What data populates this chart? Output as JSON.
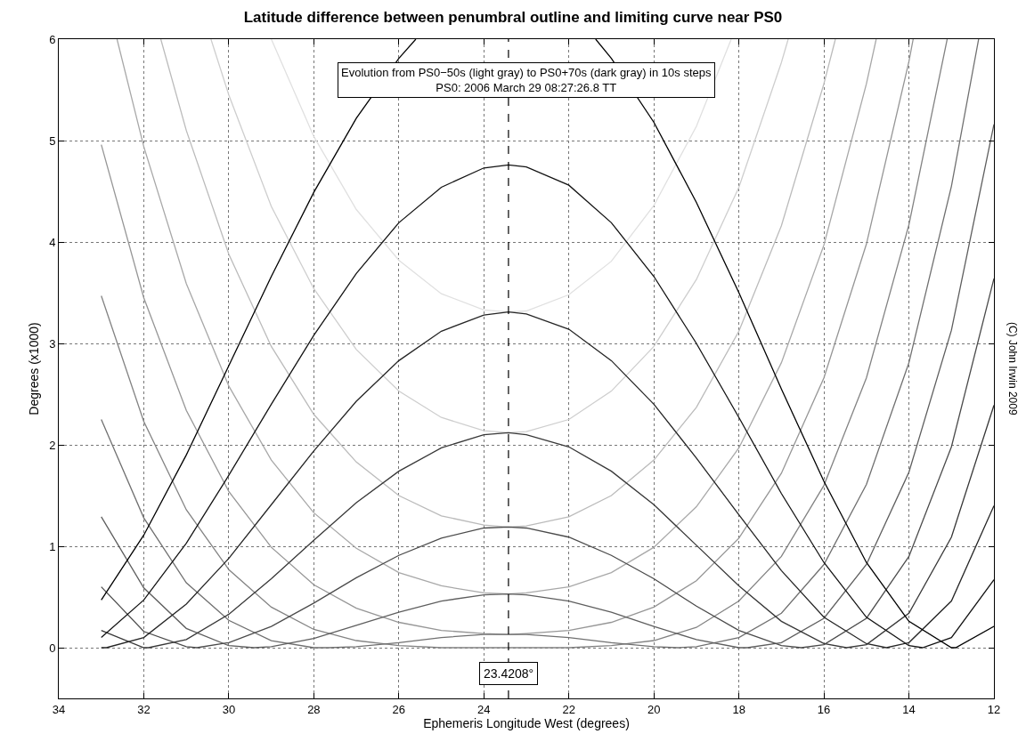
{
  "chart_data": {
    "type": "line",
    "title": "Latitude difference between penumbral outline and limiting curve near PS0",
    "xlabel": "Ephemeris Longitude West (degrees)",
    "ylabel": "Degrees (x1000)",
    "xlim": [
      34,
      12
    ],
    "xticks": [
      34,
      32,
      30,
      28,
      26,
      24,
      22,
      20,
      18,
      16,
      14,
      12
    ],
    "ylim": [
      -0.5,
      6
    ],
    "yticks": [
      0,
      1,
      2,
      3,
      4,
      5,
      6
    ],
    "grid": true,
    "series": [
      {
        "color": "#e0e0e0",
        "x": [
          29.0,
          28,
          27,
          26,
          25,
          24,
          23.42,
          23,
          22,
          21,
          20,
          19,
          18.18
        ],
        "values": [
          6.0,
          5.04,
          4.32,
          3.82,
          3.49,
          3.33,
          3.31,
          3.32,
          3.48,
          3.81,
          4.36,
          5.14,
          6.0
        ]
      },
      {
        "color": "#cecece",
        "x": [
          30.42,
          30,
          29,
          28,
          27,
          26,
          25,
          24,
          23.42,
          23,
          22,
          21,
          20,
          19,
          18,
          17,
          16.84
        ],
        "values": [
          6.0,
          5.45,
          4.35,
          3.54,
          2.94,
          2.53,
          2.27,
          2.14,
          2.12,
          2.13,
          2.25,
          2.53,
          2.97,
          3.63,
          4.54,
          5.77,
          6.0
        ]
      },
      {
        "color": "#bbbbbb",
        "x": [
          31.6,
          31,
          30,
          29,
          28,
          27,
          26,
          25,
          24,
          23.42,
          23,
          22,
          21,
          20,
          19,
          18,
          17,
          16,
          15.73
        ],
        "values": [
          6.0,
          5.1,
          3.88,
          2.97,
          2.3,
          1.83,
          1.5,
          1.3,
          1.21,
          1.19,
          1.2,
          1.29,
          1.5,
          1.85,
          2.37,
          3.12,
          4.16,
          5.56,
          6.0
        ]
      },
      {
        "color": "#a8a8a8",
        "x": [
          32.63,
          32,
          31,
          30,
          29,
          28,
          27,
          26,
          25,
          24,
          23.42,
          23,
          22,
          21,
          20,
          19,
          18,
          17,
          16,
          15,
          14.77
        ],
        "values": [
          6.0,
          4.94,
          3.59,
          2.58,
          1.85,
          1.33,
          0.98,
          0.74,
          0.61,
          0.54,
          0.53,
          0.54,
          0.6,
          0.74,
          0.99,
          1.39,
          1.97,
          2.81,
          3.97,
          5.56,
          6.0
        ]
      },
      {
        "color": "#969696",
        "x": [
          33,
          32,
          31,
          30,
          29,
          28,
          27,
          26,
          25,
          24,
          23.42,
          23,
          22,
          21,
          20,
          19,
          18,
          17,
          16,
          15,
          14,
          13.9
        ],
        "values": [
          4.96,
          3.45,
          2.34,
          1.54,
          0.99,
          0.62,
          0.39,
          0.25,
          0.17,
          0.14,
          0.13,
          0.14,
          0.17,
          0.25,
          0.4,
          0.66,
          1.08,
          1.72,
          2.66,
          3.98,
          5.78,
          6.0
        ]
      },
      {
        "color": "#838383",
        "x": [
          33,
          32,
          31,
          30,
          29,
          28,
          27,
          26,
          25,
          24,
          23.42,
          23,
          22,
          21,
          20,
          19,
          18,
          17,
          16,
          15,
          14,
          13.1
        ],
        "values": [
          3.47,
          2.23,
          1.36,
          0.77,
          0.4,
          0.18,
          0.07,
          0.02,
          0.0,
          0.0,
          0.0,
          0.0,
          0.0,
          0.02,
          0.07,
          0.2,
          0.46,
          0.9,
          1.6,
          2.66,
          4.17,
          6.0
        ]
      },
      {
        "color": "#707070",
        "x": [
          33,
          32,
          31,
          30,
          29,
          28,
          27.65,
          27,
          26,
          25,
          24,
          23.42,
          23,
          22,
          21,
          20,
          19.44,
          19,
          18,
          17,
          16,
          15,
          14,
          13,
          12.36
        ],
        "values": [
          2.25,
          1.28,
          0.64,
          0.27,
          0.07,
          0.0,
          0.0,
          0.01,
          0.05,
          0.1,
          0.13,
          0.13,
          0.13,
          0.1,
          0.05,
          0.01,
          0.0,
          0.01,
          0.1,
          0.34,
          0.82,
          1.61,
          2.81,
          4.55,
          6.0
        ]
      },
      {
        "color": "#5e5e5e",
        "x": [
          33,
          32,
          31,
          30,
          29.41,
          29,
          28,
          27,
          26,
          25,
          24,
          23.42,
          23,
          22,
          21,
          20,
          19,
          18,
          17.8,
          17,
          16,
          15,
          14,
          13,
          12
        ],
        "values": [
          1.29,
          0.59,
          0.19,
          0.02,
          0.0,
          0.01,
          0.09,
          0.22,
          0.35,
          0.46,
          0.52,
          0.53,
          0.52,
          0.46,
          0.35,
          0.21,
          0.08,
          0.0,
          0.0,
          0.05,
          0.29,
          0.82,
          1.73,
          3.13,
          5.16
        ]
      },
      {
        "color": "#4b4b4b",
        "x": [
          33,
          32,
          31,
          30.75,
          30,
          29,
          28,
          27,
          26,
          25,
          24,
          23.42,
          23,
          22,
          21,
          20,
          19,
          18,
          17,
          16.53,
          16,
          15,
          14,
          13,
          12
        ],
        "values": [
          0.6,
          0.16,
          0.01,
          0.0,
          0.05,
          0.21,
          0.44,
          0.69,
          0.91,
          1.08,
          1.18,
          1.19,
          1.18,
          1.09,
          0.91,
          0.68,
          0.41,
          0.17,
          0.02,
          0.0,
          0.03,
          0.29,
          0.9,
          1.98,
          3.64
        ]
      },
      {
        "color": "#383838",
        "x": [
          33,
          32,
          31.89,
          31,
          30,
          29,
          28,
          27,
          26,
          25,
          24,
          23.42,
          23,
          22,
          21,
          20,
          19,
          18,
          17,
          16,
          15.47,
          15,
          14,
          13,
          12
        ],
        "values": [
          0.17,
          0.0,
          0.0,
          0.08,
          0.33,
          0.68,
          1.06,
          1.43,
          1.74,
          1.97,
          2.1,
          2.12,
          2.1,
          1.98,
          1.74,
          1.41,
          1.01,
          0.61,
          0.26,
          0.04,
          0.0,
          0.03,
          0.34,
          1.09,
          2.39
        ]
      },
      {
        "color": "#252525",
        "x": [
          33,
          32.88,
          32,
          31,
          30,
          29,
          28,
          27,
          26,
          25,
          24,
          23.42,
          23,
          22,
          21,
          20,
          19,
          18,
          17,
          16,
          15,
          14.53,
          14,
          13,
          12
        ],
        "values": [
          0.0,
          0.0,
          0.1,
          0.43,
          0.88,
          1.41,
          1.94,
          2.43,
          2.83,
          3.12,
          3.28,
          3.31,
          3.29,
          3.14,
          2.83,
          2.4,
          1.87,
          1.31,
          0.76,
          0.3,
          0.04,
          0.0,
          0.05,
          0.46,
          1.4
        ]
      },
      {
        "color": "#131313",
        "x": [
          33,
          32,
          31,
          30,
          29,
          28,
          27,
          26,
          25,
          24,
          23.42,
          23,
          22,
          21,
          20,
          19,
          18,
          17,
          16,
          15,
          14,
          13.68,
          13,
          12
        ],
        "values": [
          0.1,
          0.47,
          1.03,
          1.7,
          2.4,
          3.08,
          3.69,
          4.19,
          4.54,
          4.73,
          4.76,
          4.74,
          4.56,
          4.19,
          3.66,
          3.0,
          2.27,
          1.52,
          0.84,
          0.3,
          0.02,
          0.0,
          0.1,
          0.67
        ]
      },
      {
        "color": "#000000",
        "x": [
          33,
          32,
          31,
          30,
          29,
          28,
          27,
          26,
          25.6,
          23.42,
          21.37,
          21,
          20,
          19,
          18,
          17,
          16,
          15,
          14,
          13,
          12.9,
          12
        ],
        "values": [
          0.47,
          1.11,
          1.9,
          2.78,
          3.66,
          4.49,
          5.22,
          5.81,
          6.0,
          null,
          6.0,
          5.81,
          5.18,
          4.39,
          3.5,
          2.55,
          1.64,
          0.84,
          0.26,
          0.0,
          0.0,
          0.21
        ]
      }
    ],
    "ref_lines": [
      {
        "axis": "x",
        "value": 23.4208,
        "label": "23.4208°",
        "line_style": "dashed",
        "color": "#000000"
      }
    ],
    "annotations": [
      "Evolution from PS0−50s (light gray) to PS0+70s (dark gray) in 10s steps\nPS0: 2006 March 29 08:27:26.8 TT",
      "(C) John Irwin 2009"
    ]
  }
}
